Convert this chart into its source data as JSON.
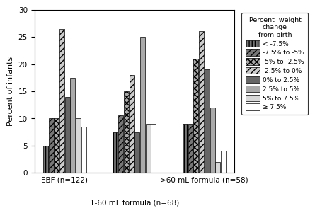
{
  "groups": [
    "EBF (n=122)",
    "1-60 mL formula (n=68)",
    ">60 mL formula (n=58)"
  ],
  "categories": [
    "< -7.5%",
    "-7.5% to -5%",
    "-5% to -2.5%",
    "-2.5% to 0%",
    "0% to 2.5%",
    "2.5% to 5%",
    "5% to 7.5%",
    "≥ 7.5%"
  ],
  "values": [
    [
      5,
      10,
      10,
      26.5,
      14,
      17.5,
      10,
      8.5
    ],
    [
      7.5,
      10.5,
      15,
      18,
      7.5,
      25,
      9,
      9
    ],
    [
      9,
      9,
      21,
      26,
      19,
      12,
      2,
      4
    ]
  ],
  "legend_title": "Percent  weight\nchange\nfrom birth",
  "ylabel": "Percent of infants",
  "ylim": [
    0,
    30
  ],
  "yticks": [
    0,
    5,
    10,
    15,
    20,
    25,
    30
  ],
  "xlabel_main": "1-60 mL formula (n=68)",
  "background_color": "#ffffff",
  "bar_styles": [
    {
      "hatch": "||||",
      "facecolor": "#777777",
      "label": "< -7.5%"
    },
    {
      "hatch": "////",
      "facecolor": "#777777",
      "label": "-7.5% to -5%"
    },
    {
      "hatch": "xxxx",
      "facecolor": "#aaaaaa",
      "label": "-5% to -2.5%"
    },
    {
      "hatch": "////",
      "facecolor": "#cccccc",
      "label": "-2.5% to 0%"
    },
    {
      "hatch": "",
      "facecolor": "#666666",
      "label": "0% to 2.5%"
    },
    {
      "hatch": "",
      "facecolor": "#aaaaaa",
      "label": "2.5% to 5%"
    },
    {
      "hatch": "",
      "facecolor": "#d8d8d8",
      "label": "5% to 7.5%"
    },
    {
      "hatch": "",
      "facecolor": "#ffffff",
      "label": "≥ 7.5%"
    }
  ]
}
